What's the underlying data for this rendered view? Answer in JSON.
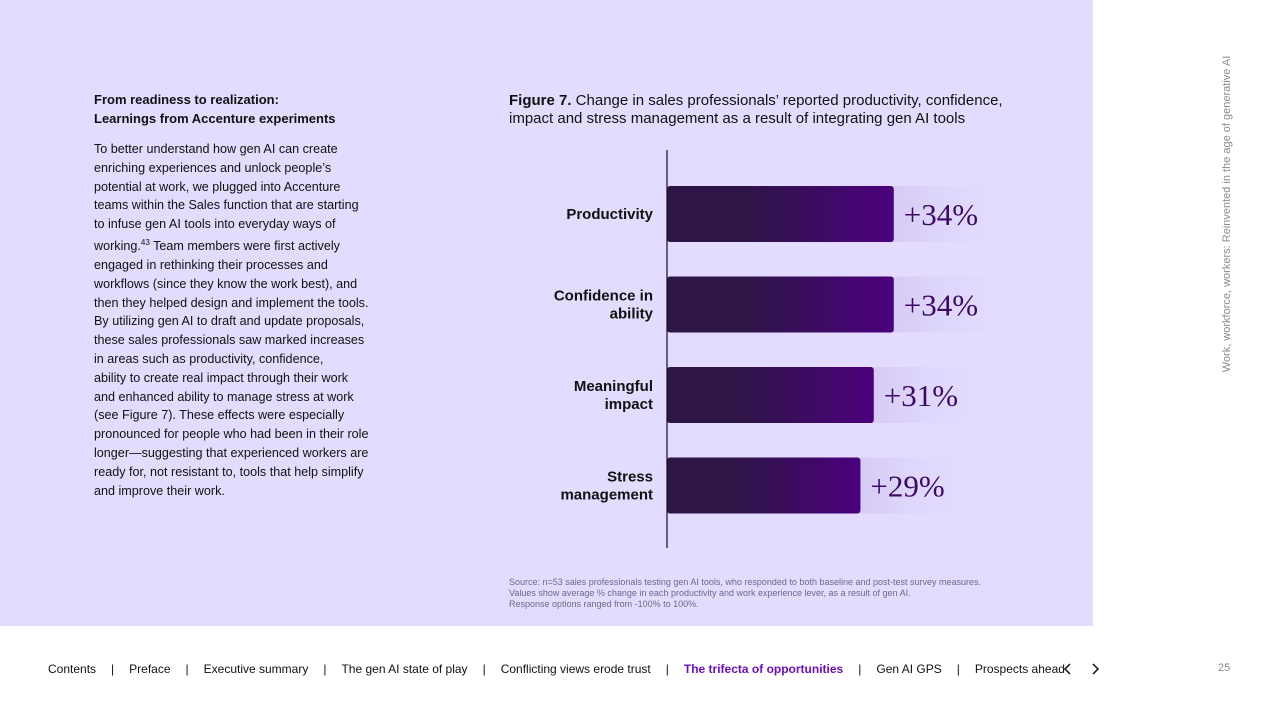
{
  "side_title": "Work, workforce, workers: Reinvented in the age of generative AI",
  "heading": {
    "line1": "From readiness to realization:",
    "line2": "Learnings from Accenture experiments"
  },
  "body_lines": [
    "To better understand how gen AI can create",
    "enriching experiences and unlock people’s",
    "potential at work, we plugged into Accenture",
    "teams within the Sales function that are starting",
    "to infuse gen AI tools into everyday ways of",
    "working.",
    "engaged in rethinking their processes and",
    "workflows (since they know the work best), and",
    "then they helped design and implement the tools.",
    "By utilizing gen AI to draft and update proposals,",
    "these sales professionals saw marked increases",
    "in areas such as productivity, confidence,",
    "ability to create real impact through their work",
    "and enhanced ability to manage stress at work",
    "(see Figure 7). These effects were especially",
    "pronounced for people who had been in their role",
    "longer—suggesting that experienced workers are",
    "ready for, not resistant to, tools that help simplify",
    "and improve their work."
  ],
  "footnote_ref": "43",
  "body_line6_tail": " Team members were first actively",
  "figure": {
    "label": "Figure 7.",
    "title": " Change in sales professionals’ reported productivity, confidence, impact and stress management as a result of integrating gen AI tools"
  },
  "chart_data": {
    "type": "bar",
    "orientation": "horizontal",
    "categories": [
      [
        "Productivity"
      ],
      [
        "Confidence in",
        "ability"
      ],
      [
        "Meaningful",
        "impact"
      ],
      [
        "Stress",
        "management"
      ]
    ],
    "values": [
      34,
      34,
      31,
      29
    ],
    "value_labels": [
      "+34%",
      "+34%",
      "+31%",
      "+29%"
    ],
    "xlim": [
      0,
      50
    ],
    "bar_color_start": "#2e1547",
    "bar_color_end": "#4b007d",
    "label_color": "#3c0a66"
  },
  "source_lines": [
    "Source: n=53 sales professionals testing gen AI tools, who responded to both baseline and post-test survey measures.",
    "Values show average % change in each productivity and work experience lever, as a result of gen AI.",
    "Response options ranged from -100% to 100%."
  ],
  "footer": {
    "items": [
      {
        "label": "Contents",
        "active": false
      },
      {
        "label": "Preface",
        "active": false
      },
      {
        "label": "Executive summary",
        "active": false
      },
      {
        "label": "The gen AI state of play",
        "active": false
      },
      {
        "label": "Conflicting views erode trust",
        "active": false
      },
      {
        "label": "The trifecta of opportunities",
        "active": true
      },
      {
        "label": "Gen AI GPS",
        "active": false
      },
      {
        "label": "Prospects ahead",
        "active": false
      }
    ],
    "separator": "|",
    "page_number": "25"
  },
  "colors": {
    "panel": "#e3dcff",
    "accent": "#6b0fc2"
  }
}
